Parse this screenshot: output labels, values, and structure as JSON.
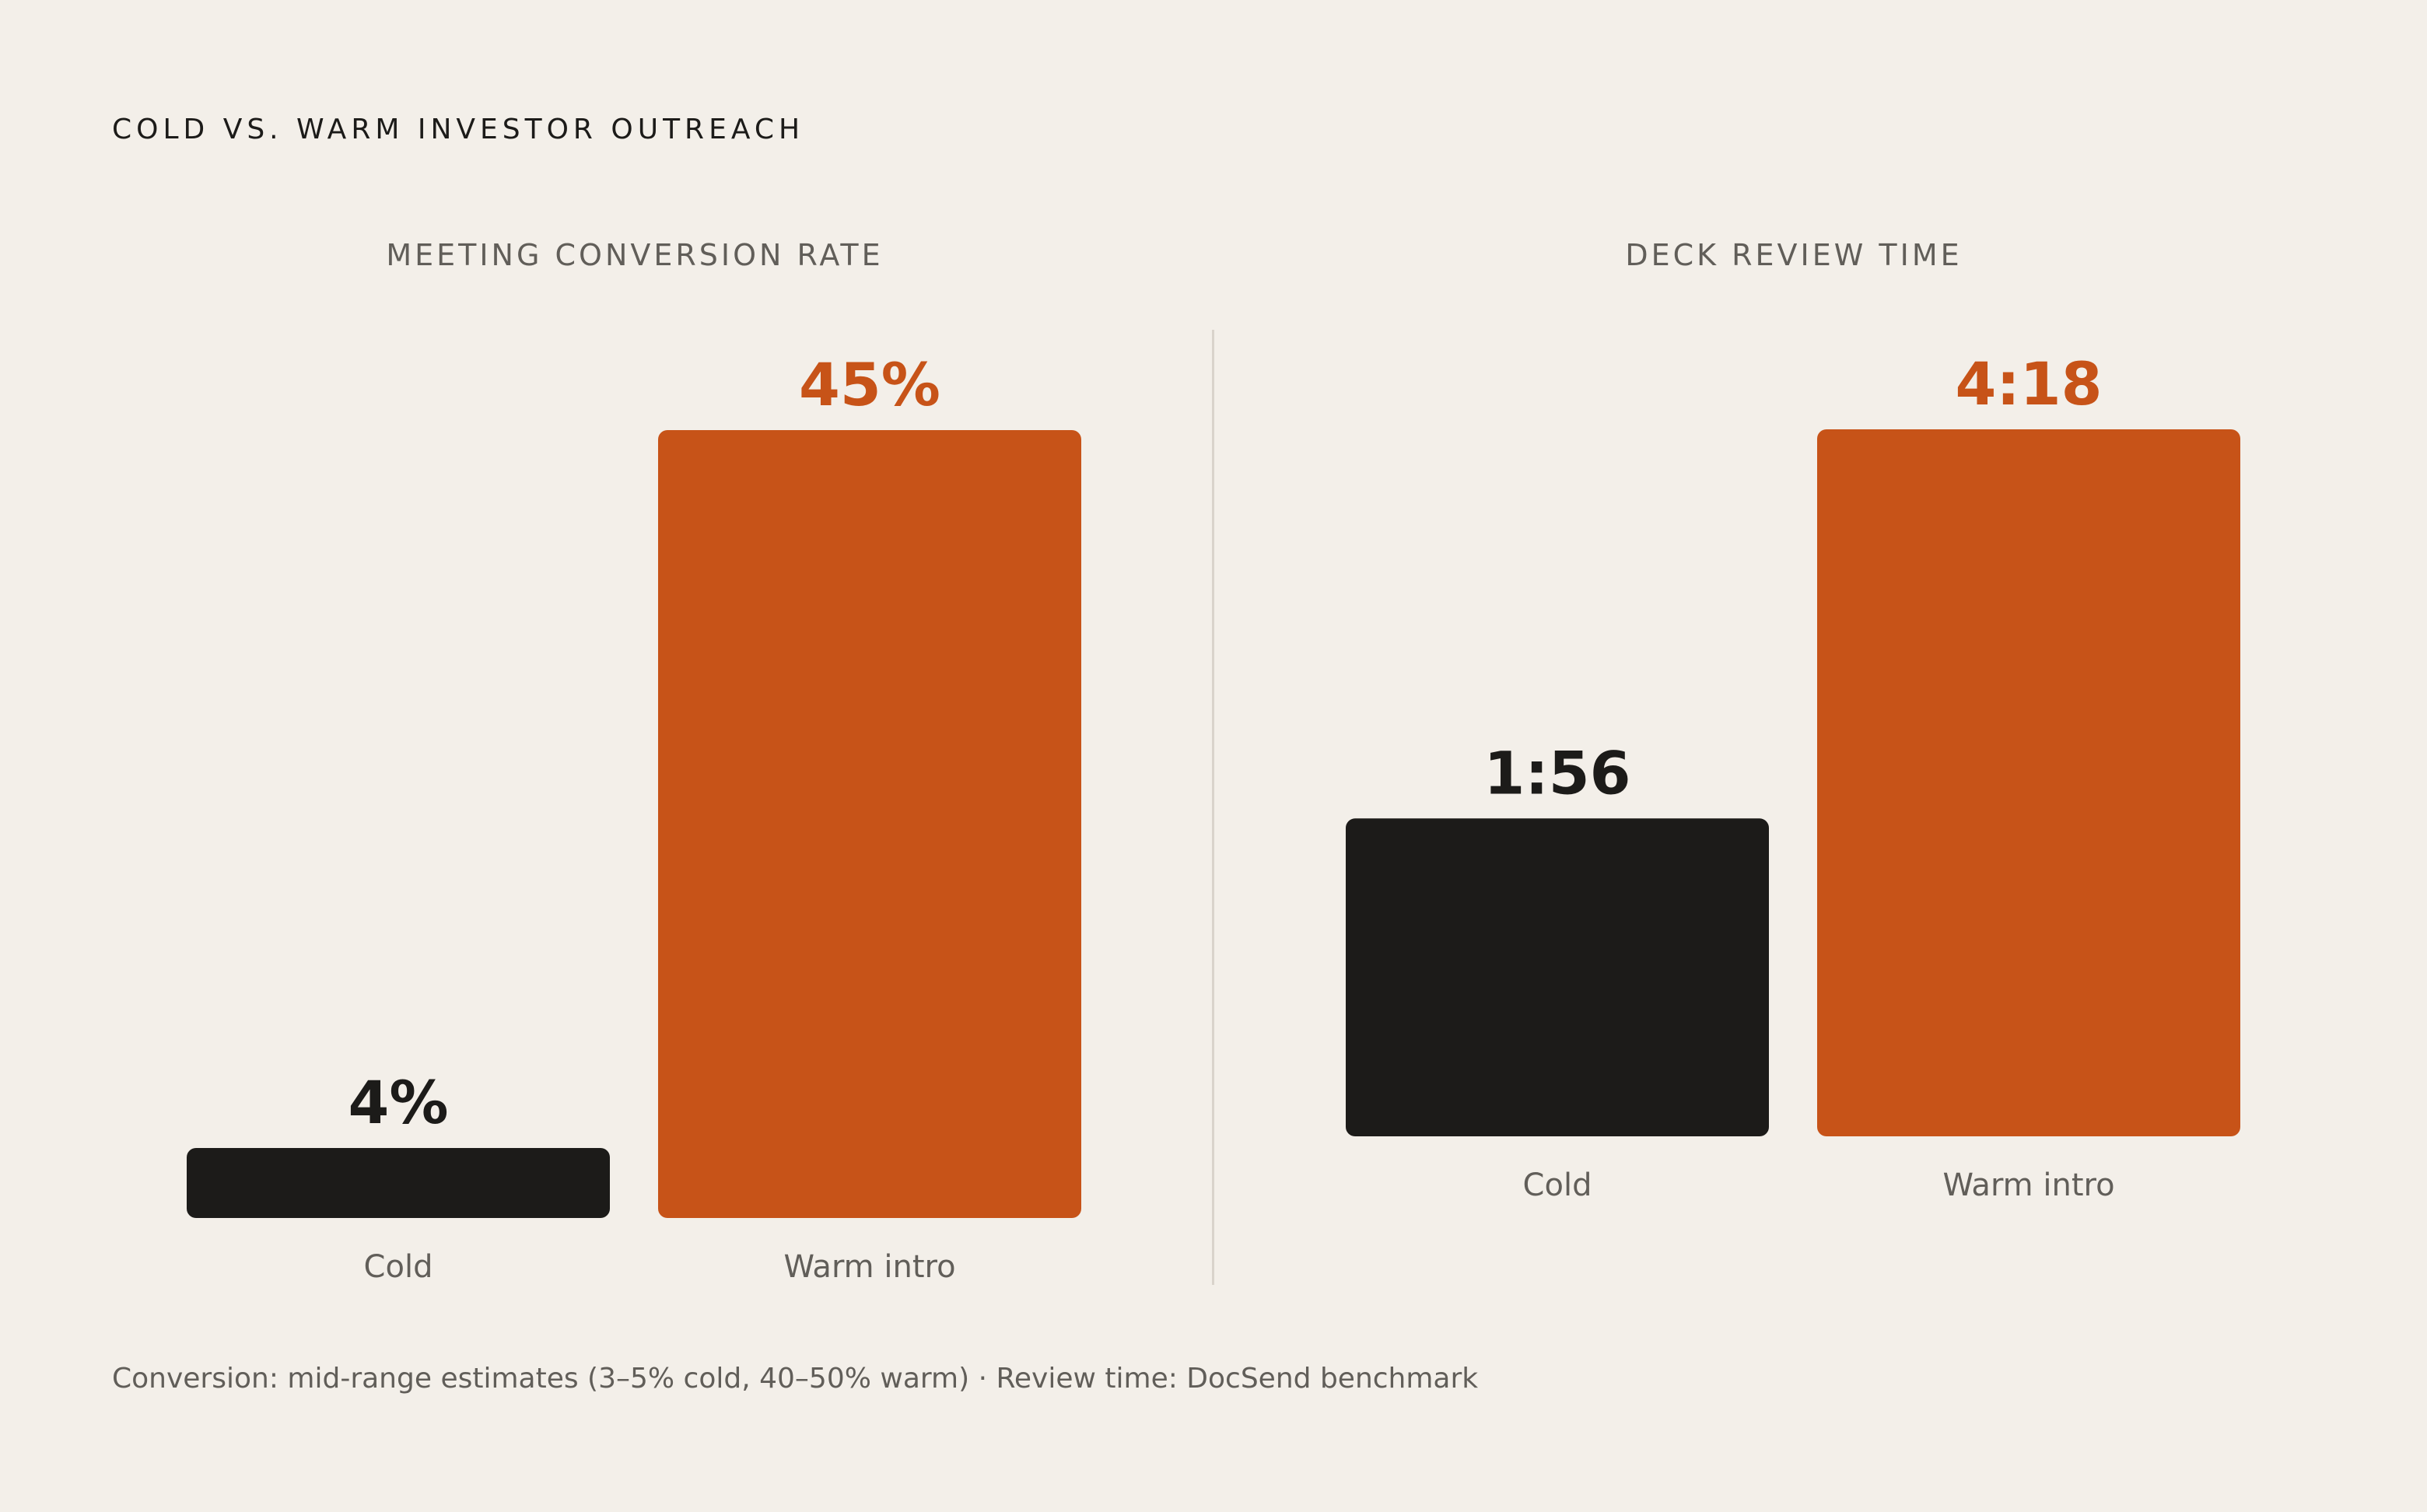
{
  "title": "COLD VS. WARM INVESTOR OUTREACH",
  "footnote": "Conversion: mid-range estimates (3–5% cold, 40–50% warm) · Review time: DocSend benchmark",
  "colors": {
    "cold": "#1c1b19",
    "warm": "#c75318",
    "background": "#f3efe9",
    "muted": "#615e59"
  },
  "chart_data": [
    {
      "type": "bar",
      "title": "MEETING CONVERSION RATE",
      "categories": [
        "Cold",
        "Warm intro"
      ],
      "values": [
        4,
        45
      ],
      "value_labels": [
        "4%",
        "45%"
      ],
      "unit": "%",
      "colors": [
        "#1c1b19",
        "#c75318"
      ]
    },
    {
      "type": "bar",
      "title": "DECK REVIEW TIME",
      "categories": [
        "Cold",
        "Warm intro"
      ],
      "values": [
        116,
        258
      ],
      "value_labels": [
        "1:56",
        "4:18"
      ],
      "unit": "seconds",
      "colors": [
        "#1c1b19",
        "#c75318"
      ]
    }
  ]
}
